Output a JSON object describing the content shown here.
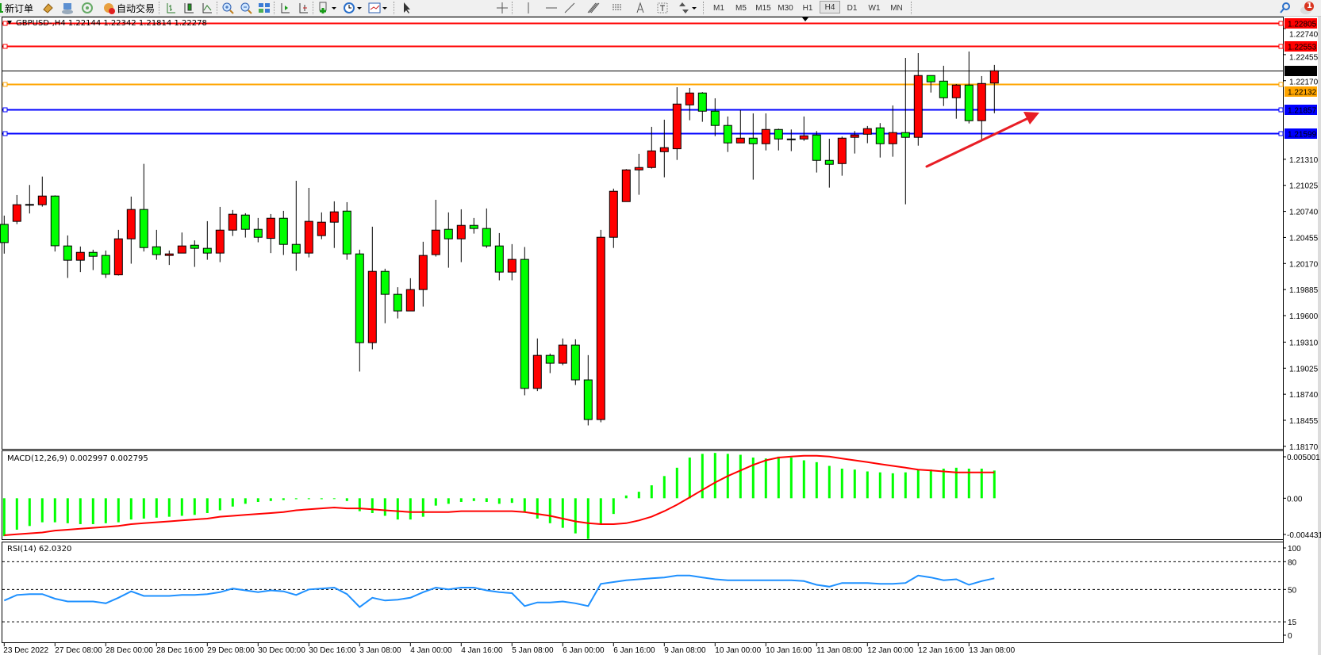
{
  "toolbar": {
    "new_order_label": "新订单",
    "auto_trading_label": "自动交易",
    "timeframes": [
      "M1",
      "M5",
      "M15",
      "M30",
      "H1",
      "H4",
      "D1",
      "W1",
      "MN"
    ],
    "active_timeframe": "H4",
    "notification_count": "1",
    "icons": [
      "new-order-icon",
      "market-watch-icon",
      "history-center-icon",
      "signals-icon",
      "auto-trading-icon",
      "bar-chart-icon",
      "candlestick-icon",
      "line-chart-icon",
      "zoom-in-icon",
      "zoom-out-icon",
      "tile-windows-icon",
      "chart-shift-icon",
      "autoscroll-icon",
      "indicators-icon",
      "periods-clock-icon",
      "templates-icon",
      "cursor-icon",
      "crosshair-icon",
      "vertical-line-icon",
      "horizontal-line-icon",
      "trendline-icon",
      "fibonacci-icon",
      "fibo-fan-icon",
      "text-icon",
      "text-label-icon",
      "arrows-icon",
      "search-icon",
      "notification-icon"
    ]
  },
  "chart_header": "GBPUSD-,H4  1.22144 1.22342 1.21814 1.22278",
  "colors": {
    "bull": "#FF0000",
    "bear": "#00FF00",
    "outline": "#000000",
    "macd_hist": "#00FF00",
    "macd_signal": "#FF0000",
    "rsi": "#1E90FF",
    "arrow": "#E81E25"
  },
  "chart_data": [
    {
      "type": "candlestick",
      "symbol": "GBPUSD-",
      "timeframe": "H4",
      "ohlc_fields": [
        "open",
        "high",
        "low",
        "close"
      ],
      "candles": [
        [
          1.20598,
          1.20694,
          1.20278,
          1.20399
        ],
        [
          1.20631,
          1.20919,
          1.20601,
          1.20813
        ],
        [
          1.2081,
          1.21029,
          1.20717,
          1.20816
        ],
        [
          1.20813,
          1.21121,
          1.20792,
          1.20908
        ],
        [
          1.20908,
          1.20915,
          1.20301,
          1.20364
        ],
        [
          1.20362,
          1.20477,
          1.20012,
          1.20206
        ],
        [
          1.20206,
          1.20356,
          1.20076,
          1.20292
        ],
        [
          1.20292,
          1.20321,
          1.20098,
          1.20249
        ],
        [
          1.20258,
          1.20312,
          1.20012,
          1.20052
        ],
        [
          1.20046,
          1.20538,
          1.20038,
          1.2044
        ],
        [
          1.2044,
          1.20902,
          1.20168,
          1.20761
        ],
        [
          1.20761,
          1.2126,
          1.20301,
          1.20344
        ],
        [
          1.20353,
          1.20538,
          1.20211,
          1.20267
        ],
        [
          1.20258,
          1.20312,
          1.20154,
          1.20275
        ],
        [
          1.20284,
          1.20509,
          1.20284,
          1.20362
        ],
        [
          1.2037,
          1.20423,
          1.20133,
          1.20336
        ],
        [
          1.20336,
          1.20633,
          1.20211,
          1.20284
        ],
        [
          1.20284,
          1.20789,
          1.20185,
          1.20535
        ],
        [
          1.20535,
          1.20755,
          1.20471,
          1.20709
        ],
        [
          1.207,
          1.2072,
          1.20454,
          1.20544
        ],
        [
          1.20544,
          1.20668,
          1.20402,
          1.20457
        ],
        [
          1.20445,
          1.20711,
          1.20284,
          1.20665
        ],
        [
          1.20665,
          1.20746,
          1.20263,
          1.20379
        ],
        [
          1.20379,
          1.21075,
          1.2009,
          1.20284
        ],
        [
          1.20284,
          1.20997,
          1.20237,
          1.20631
        ],
        [
          1.20475,
          1.20729,
          1.20436,
          1.20622
        ],
        [
          1.20622,
          1.2085,
          1.2034,
          1.20735
        ],
        [
          1.20743,
          1.20841,
          1.20211,
          1.20275
        ],
        [
          1.20275,
          1.20321,
          1.18989,
          1.19304
        ],
        [
          1.19304,
          1.20573,
          1.19231,
          1.20084
        ],
        [
          1.20084,
          1.20113,
          1.19517,
          1.19833
        ],
        [
          1.19833,
          1.19911,
          1.19569,
          1.19651
        ],
        [
          1.19651,
          1.20009,
          1.19651,
          1.19885
        ],
        [
          1.19885,
          1.20408,
          1.19699,
          1.20258
        ],
        [
          1.20267,
          1.20867,
          1.20246,
          1.20535
        ],
        [
          1.20544,
          1.20729,
          1.20124,
          1.2044
        ],
        [
          1.2044,
          1.20763,
          1.20185,
          1.20587
        ],
        [
          1.20587,
          1.20668,
          1.20497,
          1.20553
        ],
        [
          1.20553,
          1.20772,
          1.2034,
          1.20362
        ],
        [
          1.20362,
          1.20503,
          1.19986,
          1.20076
        ],
        [
          1.20076,
          1.20382,
          1.19986,
          1.20215
        ],
        [
          1.20215,
          1.2035,
          1.18728,
          1.18804
        ],
        [
          1.18804,
          1.1935,
          1.18775,
          1.19165
        ],
        [
          1.19165,
          1.19185,
          1.18971,
          1.19079
        ],
        [
          1.19079,
          1.1935,
          1.19058,
          1.19278
        ],
        [
          1.19278,
          1.19341,
          1.18841,
          1.18897
        ],
        [
          1.18897,
          1.19168,
          1.18399,
          1.18463
        ],
        [
          1.18463,
          1.20538,
          1.18434,
          1.20457
        ],
        [
          1.20457,
          1.20989,
          1.2034,
          1.2096
        ],
        [
          1.20847,
          1.21203,
          1.20847,
          1.21194
        ],
        [
          1.21194,
          1.2137,
          1.20922,
          1.2122
        ],
        [
          1.2122,
          1.21665,
          1.21208,
          1.21402
        ],
        [
          1.21393,
          1.21743,
          1.21113,
          1.21437
        ],
        [
          1.21425,
          1.22098,
          1.21303,
          1.21914
        ],
        [
          1.21905,
          1.2209,
          1.21737,
          1.22035
        ],
        [
          1.22035,
          1.22045,
          1.2172,
          1.21836
        ],
        [
          1.21836,
          1.21977,
          1.21563,
          1.2168
        ],
        [
          1.2168,
          1.21778,
          1.2139,
          1.21489
        ],
        [
          1.21489,
          1.21847,
          1.21489,
          1.21541
        ],
        [
          1.21541,
          1.21812,
          1.21087,
          1.2148
        ],
        [
          1.2148,
          1.21812,
          1.21407,
          1.21636
        ],
        [
          1.21636,
          1.21645,
          1.21407,
          1.21532
        ],
        [
          1.21532,
          1.21636,
          1.21399,
          1.21528
        ],
        [
          1.21532,
          1.21778,
          1.21511,
          1.21567
        ],
        [
          1.21576,
          1.21619,
          1.21165,
          1.21298
        ],
        [
          1.21298,
          1.21535,
          1.21,
          1.21255
        ],
        [
          1.21263,
          1.21558,
          1.2113,
          1.21541
        ],
        [
          1.2155,
          1.21619,
          1.21373,
          1.21576
        ],
        [
          1.21584,
          1.21674,
          1.21486,
          1.21645
        ],
        [
          1.21654,
          1.21706,
          1.21329,
          1.2148
        ],
        [
          1.2148,
          1.21899,
          1.21338,
          1.21602
        ],
        [
          1.21602,
          1.22419,
          1.20818,
          1.2155
        ],
        [
          1.2155,
          1.22471,
          1.21459,
          1.22226
        ],
        [
          1.22226,
          1.22226,
          1.2204,
          1.22157
        ],
        [
          1.22165,
          1.22333,
          1.21893,
          1.21983
        ],
        [
          1.21983,
          1.22133,
          1.21754,
          1.22122
        ],
        [
          1.22122,
          1.22489,
          1.21702,
          1.21732
        ],
        [
          1.21732,
          1.2222,
          1.21506,
          1.22139
        ],
        [
          1.22144,
          1.22342,
          1.21814,
          1.22278
        ]
      ],
      "ylim": [
        1.1817,
        1.22805
      ],
      "price_ticks": [
        "1.22740",
        "1.22455",
        "1.22170",
        "1.21310",
        "1.21025",
        "1.20740",
        "1.20455",
        "1.20170",
        "1.19885",
        "1.19600",
        "1.19310",
        "1.19025",
        "1.18740",
        "1.18455",
        "1.18170"
      ],
      "horizontal_lines": [
        {
          "price": 1.22805,
          "label": "1.22805",
          "color": "#FF0000"
        },
        {
          "price": 1.22553,
          "label": "1.22553",
          "color": "#FF0000"
        },
        {
          "price": 1.22278,
          "label": "1.22278",
          "color": "#000000",
          "type": "bid"
        },
        {
          "price": 1.22132,
          "label": "1.22132",
          "color": "#FFA500"
        },
        {
          "price": 1.21857,
          "label": "1.21857",
          "color": "#0000FF"
        },
        {
          "price": 1.21599,
          "label": "1.21599",
          "color": "#0000FF"
        }
      ],
      "time_labels": [
        "23 Dec 2022",
        "27 Dec 08:00",
        "28 Dec 00:00",
        "28 Dec 16:00",
        "29 Dec 08:00",
        "30 Dec 00:00",
        "30 Dec 16:00",
        "3 Jan 08:00",
        "4 Jan 00:00",
        "4 Jan 16:00",
        "5 Jan 08:00",
        "6 Jan 00:00",
        "6 Jan 16:00",
        "9 Jan 08:00",
        "10 Jan 00:00",
        "10 Jan 16:00",
        "11 Jan 08:00",
        "12 Jan 00:00",
        "12 Jan 16:00",
        "13 Jan 08:00"
      ],
      "time_label_every_bars": 4,
      "annotation": "red-arrow-up-right"
    },
    {
      "type": "bar+line",
      "title": "MACD(12,26,9) 0.002997 0.002795",
      "ylim": [
        -0.004431,
        0.005001
      ],
      "ticks": [
        "0.005001",
        "0.00",
        "-0.004431"
      ],
      "histogram": [
        -0.0041,
        -0.0034,
        -0.003,
        -0.0026,
        -0.0026,
        -0.0027,
        -0.0028,
        -0.0028,
        -0.0027,
        -0.0026,
        -0.0023,
        -0.0022,
        -0.0021,
        -0.002,
        -0.0019,
        -0.0018,
        -0.0016,
        -0.0013,
        -0.0009,
        -0.0006,
        -0.0004,
        -0.0003,
        -0.0002,
        -0.0001,
        -0.0001,
        -0.0001,
        0.0,
        -0.0003,
        -0.0014,
        -0.0016,
        -0.0019,
        -0.0023,
        -0.0023,
        -0.002,
        -0.0008,
        -0.0006,
        -0.0004,
        -0.0003,
        -0.0004,
        -0.0006,
        -0.0005,
        -0.0015,
        -0.0022,
        -0.0027,
        -0.0032,
        -0.0038,
        -0.0044,
        -0.0028,
        -0.0017,
        0.0003,
        0.0007,
        0.0014,
        0.0024,
        0.0033,
        0.0044,
        0.0048,
        0.0049,
        0.0048,
        0.0047,
        0.0044,
        0.0043,
        0.0045,
        0.0044,
        0.0041,
        0.0039,
        0.0035,
        0.0032,
        0.0031,
        0.0029,
        0.0028,
        0.0027,
        0.0028,
        0.0031,
        0.0031,
        0.0032,
        0.0033,
        0.0032,
        0.0032,
        0.002997
      ],
      "signal": [
        -0.004,
        -0.0039,
        -0.0038,
        -0.0037,
        -0.0035,
        -0.0034,
        -0.0033,
        -0.0032,
        -0.0031,
        -0.003,
        -0.0028,
        -0.0027,
        -0.0026,
        -0.0025,
        -0.0024,
        -0.0023,
        -0.0022,
        -0.002,
        -0.0019,
        -0.0018,
        -0.0017,
        -0.0016,
        -0.0015,
        -0.0013,
        -0.0012,
        -0.0011,
        -0.001,
        -0.0011,
        -0.0011,
        -0.0012,
        -0.0013,
        -0.0014,
        -0.0015,
        -0.0015,
        -0.0015,
        -0.0015,
        -0.0014,
        -0.0014,
        -0.0014,
        -0.0014,
        -0.0014,
        -0.0015,
        -0.0017,
        -0.0019,
        -0.0022,
        -0.0025,
        -0.0027,
        -0.0028,
        -0.0028,
        -0.0027,
        -0.0024,
        -0.002,
        -0.0014,
        -0.0007,
        0.0001,
        0.0009,
        0.0017,
        0.0024,
        0.003,
        0.0036,
        0.0041,
        0.0044,
        0.0045,
        0.0046,
        0.0046,
        0.0045,
        0.0043,
        0.0041,
        0.0039,
        0.0037,
        0.0035,
        0.0033,
        0.0031,
        0.003,
        0.0029,
        0.0028,
        0.0028,
        0.0028,
        0.002795
      ]
    },
    {
      "type": "line",
      "title": "RSI(14) 62.0320",
      "ylim": [
        0,
        100
      ],
      "ticks": [
        "100",
        "80",
        "50",
        "15",
        "0"
      ],
      "levels": [
        80,
        50,
        15
      ],
      "values": [
        38,
        44,
        45,
        45,
        40,
        37,
        37,
        37,
        35,
        41,
        48,
        43,
        43,
        43,
        44,
        44,
        45,
        47,
        51,
        49,
        47,
        49,
        48,
        44,
        50,
        51,
        52,
        45,
        31,
        41,
        38,
        39,
        41,
        47,
        52,
        50,
        52,
        52,
        49,
        47,
        46,
        32,
        36,
        36,
        37,
        35,
        32,
        56,
        58,
        60,
        61,
        62,
        63,
        65,
        65,
        63,
        61,
        60,
        60,
        60,
        60,
        60,
        60,
        59,
        55,
        53,
        57,
        57,
        57,
        56,
        56,
        57,
        65,
        63,
        60,
        61,
        55,
        59,
        62.032
      ]
    }
  ]
}
